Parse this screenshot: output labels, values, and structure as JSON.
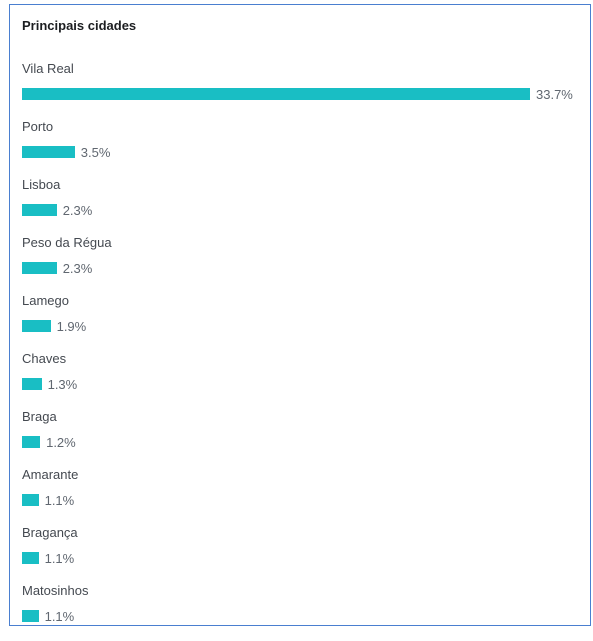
{
  "chart_data": {
    "type": "bar",
    "orientation": "horizontal",
    "title": "Principais cidades",
    "categories": [
      "Vila Real",
      "Porto",
      "Lisboa",
      "Peso da Régua",
      "Lamego",
      "Chaves",
      "Braga",
      "Amarante",
      "Bragança",
      "Matosinhos"
    ],
    "values": [
      33.7,
      3.5,
      2.3,
      2.3,
      1.9,
      1.3,
      1.2,
      1.1,
      1.1,
      1.1
    ],
    "value_labels": [
      "33.7%",
      "3.5%",
      "2.3%",
      "2.3%",
      "1.9%",
      "1.3%",
      "1.2%",
      "1.1%",
      "1.1%",
      "1.1%"
    ],
    "unit": "%",
    "bar_color": "#19bec4",
    "xlim": [
      0,
      33.7
    ],
    "grid": false,
    "legend": "none"
  }
}
